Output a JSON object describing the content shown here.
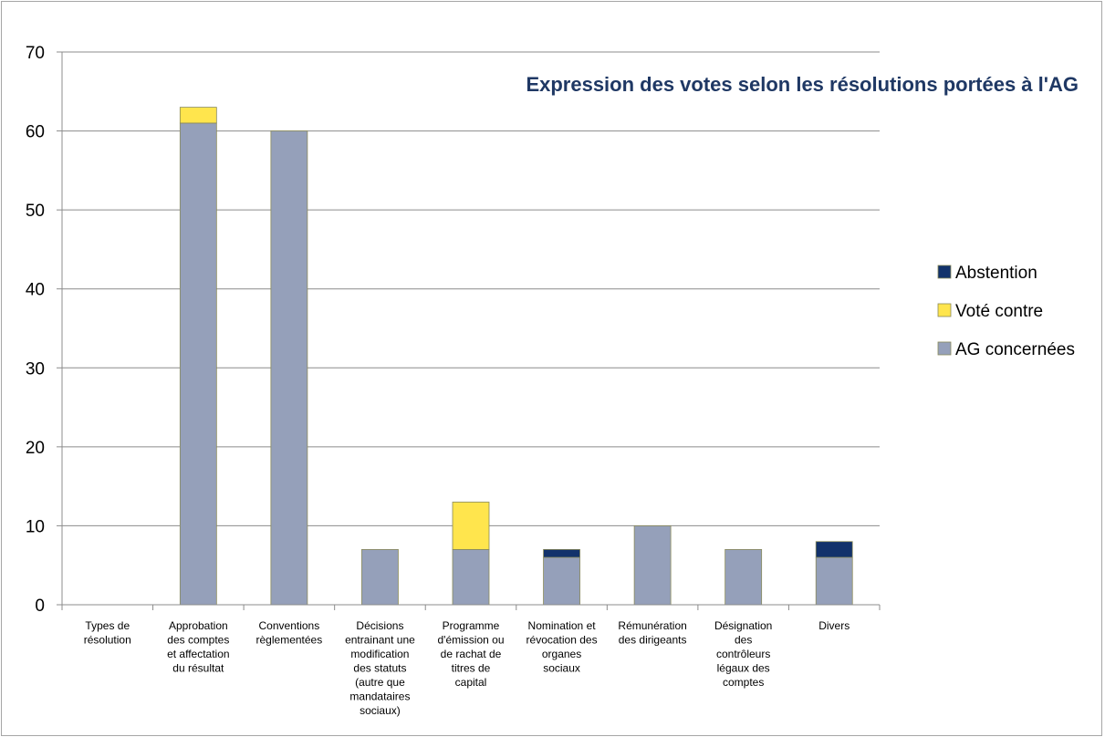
{
  "chart_data": {
    "type": "bar",
    "stacked": true,
    "title": "Expression des votes selon les résolutions portées à l'AG",
    "title_color": "#1F3864",
    "ylim": [
      0,
      70
    ],
    "yticks": [
      0,
      10,
      20,
      30,
      40,
      50,
      60,
      70
    ],
    "grid": true,
    "legend_position": "right",
    "categories": [
      [
        "Types de",
        "résolution"
      ],
      [
        "Approbation",
        "des comptes",
        "et affectation",
        "du résultat"
      ],
      [
        "Conventions",
        "règlementées"
      ],
      [
        "Décisions",
        "entrainant une",
        "modification",
        "des statuts",
        "(autre que",
        "mandataires",
        "sociaux)"
      ],
      [
        "Programme",
        "d'émission ou",
        "de rachat de",
        "titres de",
        "capital"
      ],
      [
        "Nomination et",
        "révocation des",
        "organes",
        "sociaux"
      ],
      [
        "Rémunération",
        "des dirigeants"
      ],
      [
        "Désignation",
        "des",
        "contrôleurs",
        "légaux des",
        "comptes"
      ],
      [
        "Divers"
      ]
    ],
    "series": [
      {
        "name": "AG concernées",
        "color": "#95A0BA",
        "values": [
          0,
          61,
          60,
          7,
          7,
          6,
          10,
          7,
          6
        ]
      },
      {
        "name": "Voté contre",
        "color": "#FFE54D",
        "values": [
          0,
          2,
          0,
          0,
          6,
          0,
          0,
          0,
          0
        ]
      },
      {
        "name": "Abstention",
        "color": "#12326B",
        "values": [
          0,
          0,
          0,
          0,
          0,
          1,
          0,
          0,
          2
        ]
      }
    ],
    "legend_order": [
      "Abstention",
      "Voté contre",
      "AG concernées"
    ]
  }
}
